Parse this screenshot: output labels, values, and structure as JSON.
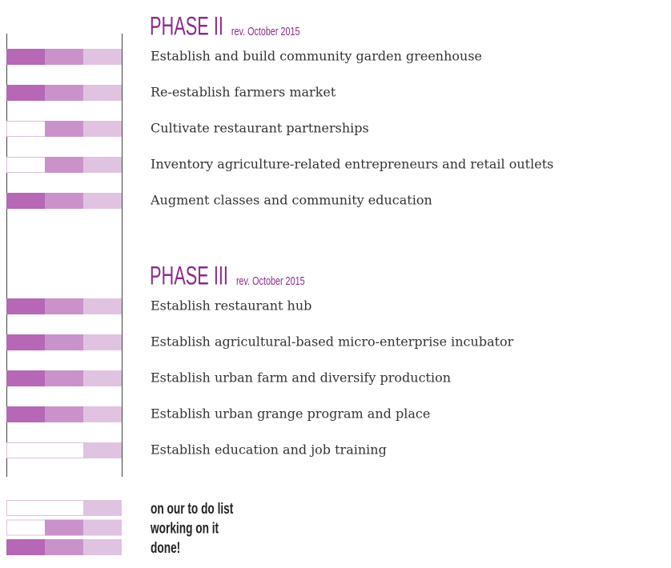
{
  "phases": [
    {
      "title": "PHASE II",
      "revision": "rev. October 2015",
      "items": [
        {
          "label": "Establish and build community garden greenhouse",
          "level": 3
        },
        {
          "label": "Re-establish farmers market",
          "level": 3
        },
        {
          "label": "Cultivate restaurant partnerships",
          "level": 2
        },
        {
          "label": "Inventory agriculture-related entrepreneurs and retail outlets",
          "level": 2
        },
        {
          "label": "Augment classes and community education",
          "level": 3
        }
      ]
    },
    {
      "title": "PHASE III",
      "revision": "rev. October 2015",
      "items": [
        {
          "label": "Establish restaurant hub",
          "level": 3
        },
        {
          "label": "Establish agricultural-based micro-enterprise incubator",
          "level": 3
        },
        {
          "label": "Establish urban farm and diversify production",
          "level": 3
        },
        {
          "label": "Establish urban grange program and place",
          "level": 3
        },
        {
          "label": "Establish education and job training",
          "level": 1
        }
      ]
    }
  ],
  "legend": [
    {
      "label": "on our to do list",
      "level": 1
    },
    {
      "label": "working on it",
      "level": 2
    },
    {
      "label": "done!",
      "level": 3
    }
  ],
  "colors": [
    "#b667b6",
    "#ca92ca",
    "#e0c3e0"
  ]
}
